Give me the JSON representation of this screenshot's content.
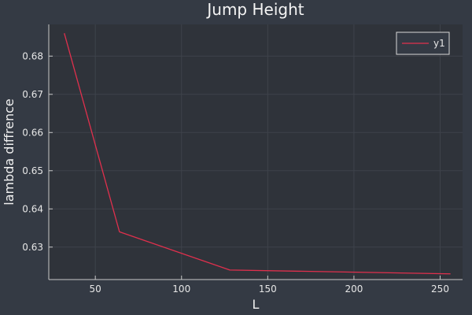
{
  "chart_data": {
    "type": "line",
    "title": "Jump Height",
    "xlabel": "L",
    "ylabel": "lambda diffrence",
    "xlim": [
      23,
      263
    ],
    "ylim": [
      0.6215,
      0.6883
    ],
    "xticks": [
      50,
      100,
      150,
      200,
      250
    ],
    "yticks": [
      0.63,
      0.64,
      0.65,
      0.66,
      0.67,
      0.68
    ],
    "grid": true,
    "legend": "top-right",
    "series": [
      {
        "name": "y1",
        "color": "#e0304d",
        "x": [
          32,
          64,
          128,
          256
        ],
        "y": [
          0.686,
          0.634,
          0.624,
          0.623
        ]
      }
    ]
  },
  "colors": {
    "background": "#343a44",
    "plot_background": "#2f333a",
    "grid": "#3e434b",
    "axis": "#c8c8c8",
    "text": "#e6e6e6"
  }
}
